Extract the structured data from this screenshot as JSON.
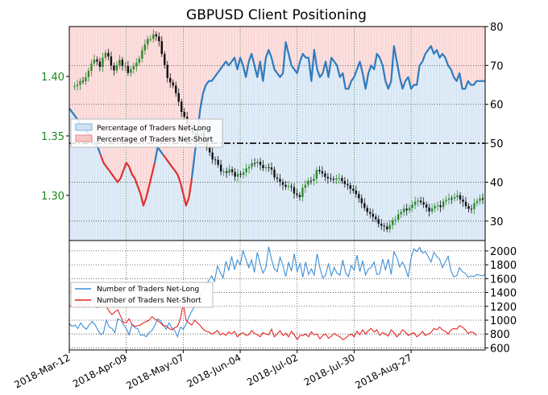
{
  "title": "GBPUSD Client Positioning",
  "colors": {
    "long": "#2f7bbd",
    "long_fill": "#cfe2f3",
    "short": "#e03030",
    "short_fill": "#f9c6c6",
    "price_axis": "#1a8a1a",
    "up_candle": "#2e8b2e",
    "down_candle": "#111111",
    "grid": "#555555"
  },
  "chart_data": [
    {
      "type": "line",
      "panel": "top",
      "left_axis": {
        "ticks": [
          "1.30",
          "1.35",
          "1.40"
        ],
        "values": [
          1.3,
          1.35,
          1.4
        ],
        "range": [
          1.262,
          1.442
        ],
        "color": "#1a8a1a"
      },
      "right_axis": {
        "ticks": [
          "30",
          "40",
          "50",
          "60",
          "70",
          "80"
        ],
        "values": [
          30,
          40,
          50,
          60,
          70,
          80
        ],
        "range": [
          25,
          80
        ]
      },
      "threshold": 50,
      "legend": {
        "position": "center-left",
        "entries": [
          "Percentage of Traders Net-Long",
          "Percentage of Traders Net-Short"
        ]
      },
      "series": [
        {
          "name": "Percentage of Traders Net-Long",
          "values": [
            59,
            58,
            57,
            56,
            55,
            54,
            53,
            52,
            51,
            50,
            49,
            47,
            45,
            44,
            43,
            42,
            41,
            40,
            41,
            43,
            45,
            44,
            42,
            41,
            39,
            37,
            34,
            36,
            39,
            42,
            45,
            49,
            48,
            47,
            46,
            45,
            44,
            43,
            42,
            40,
            37,
            34,
            36,
            41,
            47,
            53,
            59,
            63,
            65,
            66,
            66,
            67,
            68,
            69,
            70,
            71,
            70,
            71,
            72,
            69,
            72,
            70,
            67,
            71,
            73,
            70,
            67,
            71,
            66,
            72,
            74,
            72,
            69,
            68,
            67,
            68,
            76,
            73,
            70,
            69,
            68,
            71,
            73,
            72,
            72,
            66,
            74,
            69,
            67,
            68,
            71,
            67,
            72,
            71,
            70,
            67,
            68,
            64,
            64,
            66,
            67,
            69,
            71,
            68,
            64,
            68,
            70,
            69,
            73,
            72,
            70,
            66,
            64,
            66,
            75,
            71,
            67,
            64,
            66,
            67,
            64,
            65,
            65,
            70,
            71,
            73,
            74,
            75,
            73,
            74,
            72,
            73,
            72,
            70,
            69,
            67,
            66,
            68,
            64,
            64,
            66,
            65,
            65,
            66,
            66,
            66,
            66
          ]
        },
        {
          "name": "Percentage of Traders Net-Short",
          "values": [
            41,
            42,
            43,
            44,
            45,
            46,
            47,
            48,
            49,
            50,
            51,
            53,
            55,
            56,
            57,
            58,
            59,
            60,
            59,
            57,
            55,
            56,
            58,
            59,
            61,
            63,
            66,
            64,
            61,
            58,
            55,
            51,
            52,
            53,
            54,
            55,
            56,
            57,
            58,
            60,
            63,
            66,
            64,
            59,
            53,
            47,
            41,
            37,
            35,
            34,
            34,
            33,
            32,
            31,
            30,
            29,
            30,
            29,
            28,
            31,
            28,
            30,
            33,
            29,
            27,
            30,
            33,
            29,
            34,
            28,
            26,
            28,
            31,
            32,
            33,
            32,
            24,
            27,
            30,
            31,
            32,
            29,
            27,
            28,
            28,
            34,
            26,
            31,
            33,
            32,
            29,
            33,
            28,
            29,
            30,
            33,
            32,
            36,
            36,
            34,
            33,
            31,
            29,
            32,
            36,
            32,
            30,
            31,
            27,
            28,
            30,
            34,
            36,
            34,
            25,
            29,
            33,
            36,
            34,
            33,
            36,
            35,
            35,
            30,
            29,
            27,
            26,
            25,
            27,
            26,
            28,
            27,
            28,
            30,
            31,
            33,
            34,
            32,
            36,
            36,
            34,
            35,
            35,
            34,
            34,
            34,
            34
          ]
        }
      ],
      "price_close": [
        1.3916,
        1.3918,
        1.393,
        1.3962,
        1.396,
        1.3995,
        1.4048,
        1.411,
        1.4143,
        1.4126,
        1.4081,
        1.4158,
        1.4199,
        1.4168,
        1.4091,
        1.4051,
        1.4095,
        1.414,
        1.4088,
        1.4088,
        1.403,
        1.406,
        1.4085,
        1.4114,
        1.415,
        1.422,
        1.427,
        1.4315,
        1.4315,
        1.4355,
        1.4337,
        1.4297,
        1.4189,
        1.4097,
        1.3987,
        1.395,
        1.3925,
        1.386,
        1.3788,
        1.3702,
        1.3661,
        1.3599,
        1.3574,
        1.3521,
        1.3507,
        1.3503,
        1.3527,
        1.3474,
        1.34,
        1.3361,
        1.3302,
        1.3298,
        1.3258,
        1.32,
        1.3201,
        1.319,
        1.3218,
        1.3197,
        1.3157,
        1.3181,
        1.3173,
        1.3195,
        1.3227,
        1.3239,
        1.3271,
        1.327,
        1.3283,
        1.3255,
        1.3229,
        1.3237,
        1.3235,
        1.3217,
        1.3151,
        1.3139,
        1.3113,
        1.3088,
        1.3072,
        1.3077,
        1.3069,
        1.3016,
        1.3003,
        1.2986,
        1.3063,
        1.3089,
        1.3123,
        1.3121,
        1.3141,
        1.3214,
        1.3203,
        1.3185,
        1.3156,
        1.3143,
        1.3139,
        1.3131,
        1.3142,
        1.3146,
        1.3121,
        1.3096,
        1.3085,
        1.3055,
        1.304,
        1.3011,
        1.2975,
        1.2935,
        1.2895,
        1.286,
        1.2845,
        1.282,
        1.28,
        1.2761,
        1.2745,
        1.2738,
        1.2715,
        1.2751,
        1.279,
        1.2795,
        1.284,
        1.286,
        1.2888,
        1.2874,
        1.2895,
        1.2921,
        1.2947,
        1.2956,
        1.2942,
        1.2923,
        1.2897,
        1.2865,
        1.289,
        1.291,
        1.2916,
        1.2901,
        1.295,
        1.2962,
        1.2974,
        1.2972,
        1.2985,
        1.3001,
        1.2965,
        1.2946,
        1.291,
        1.2887,
        1.2885,
        1.2935,
        1.2953,
        1.2975,
        1.2965
      ]
    },
    {
      "type": "line",
      "panel": "bottom",
      "y_axis": {
        "ticks": [
          "600",
          "800",
          "1000",
          "1200",
          "1400",
          "1600",
          "1800",
          "2000"
        ],
        "values": [
          600,
          800,
          1000,
          1200,
          1400,
          1600,
          1800,
          2000
        ],
        "range": [
          570,
          2150
        ]
      },
      "legend": {
        "position": "center-left",
        "entries": [
          "Number of Traders Net-Long",
          "Number of Traders Net-Short"
        ]
      },
      "series": [
        {
          "name": "Number of Traders Net-Long",
          "values": [
            950,
            910,
            930,
            880,
            960,
            900,
            870,
            930,
            980,
            940,
            860,
            790,
            820,
            1000,
            900,
            880,
            820,
            1020,
            1000,
            940,
            880,
            790,
            940,
            890,
            880,
            780,
            790,
            760,
            820,
            850,
            920,
            1020,
            990,
            930,
            870,
            960,
            890,
            850,
            760,
            900,
            870,
            940,
            1050,
            1130,
            1200,
            1300,
            1330,
            1420,
            1500,
            1580,
            1640,
            1560,
            1780,
            1690,
            1610,
            1850,
            1720,
            1920,
            1730,
            1870,
            1800,
            2000,
            1880,
            1760,
            1870,
            1690,
            1980,
            1810,
            1680,
            1760,
            2060,
            1880,
            1740,
            1700,
            1910,
            1790,
            1630,
            1830,
            1710,
            1960,
            1700,
            1820,
            1620,
            1840,
            1660,
            1740,
            1650,
            1960,
            1750,
            1610,
            1650,
            1820,
            1640,
            1760,
            1680,
            1650,
            1870,
            1690,
            1630,
            1790,
            1720,
            1940,
            1700,
            1860,
            1650,
            1740,
            1760,
            1840,
            1660,
            1670,
            1880,
            1730,
            1880,
            1660,
            1990,
            1910,
            1770,
            1840,
            1750,
            1620,
            1900,
            2030,
            1990,
            2050,
            1970,
            1990,
            1920,
            1840,
            1980,
            1920,
            1880,
            1760,
            1840,
            1920,
            1710,
            1630,
            1640,
            1760,
            1700,
            1680,
            1620,
            1640,
            1630,
            1660,
            1650,
            1640,
            1660
          ]
        },
        {
          "name": "Number of Traders Net-Short",
          "values": [
            1190,
            1230,
            1280,
            1190,
            1260,
            1200,
            1240,
            1210,
            1320,
            1190,
            1180,
            1200,
            1260,
            1200,
            1130,
            1080,
            1120,
            1150,
            1060,
            970,
            960,
            1020,
            940,
            910,
            920,
            930,
            960,
            980,
            1000,
            1050,
            1020,
            990,
            960,
            920,
            920,
            880,
            860,
            890,
            910,
            1020,
            1240,
            1000,
            960,
            930,
            1000,
            960,
            920,
            870,
            840,
            830,
            800,
            820,
            850,
            790,
            810,
            780,
            830,
            800,
            840,
            760,
            800,
            820,
            780,
            790,
            850,
            810,
            790,
            760,
            820,
            800,
            790,
            870,
            760,
            800,
            850,
            780,
            810,
            760,
            840,
            790,
            720,
            780,
            780,
            800,
            760,
            830,
            790,
            800,
            730,
            780,
            800,
            740,
            770,
            810,
            780,
            760,
            720,
            740,
            780,
            800,
            760,
            840,
            790,
            860,
            800,
            850,
            880,
            830,
            860,
            780,
            820,
            800,
            770,
            860,
            820,
            760,
            800,
            860,
            830,
            780,
            800,
            820,
            760,
            790,
            840,
            780,
            800,
            820,
            880,
            860,
            900,
            860,
            840,
            800,
            860,
            880,
            870,
            920,
            900,
            860,
            810,
            830,
            820,
            780
          ]
        }
      ]
    }
  ],
  "x_labels": [
    "2018-Mar-12",
    "2018-Apr-09",
    "2018-May-07",
    "2018-Jun-04",
    "2018-Jul-02",
    "2018-Jul-30",
    "2018-Aug-27"
  ]
}
